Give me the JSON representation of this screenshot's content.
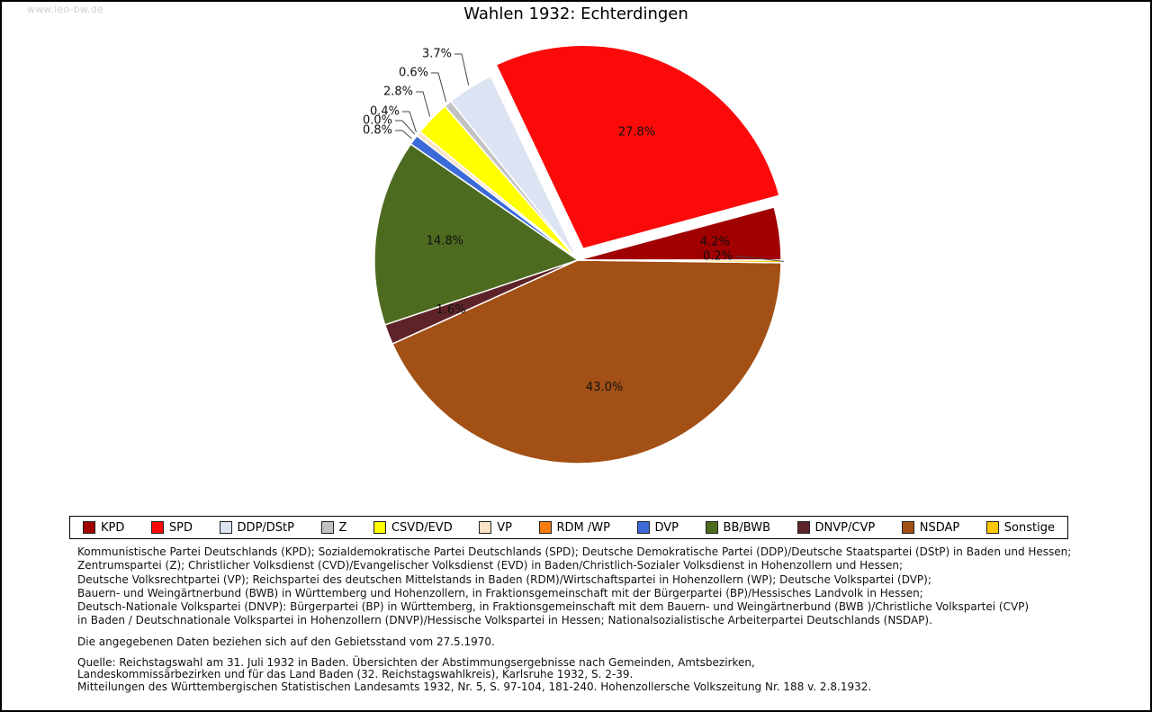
{
  "page": {
    "watermark": "www.leo-bw.de"
  },
  "chart_data": {
    "type": "pie",
    "title": "Wahlen 1932: Echterdingen",
    "values_unit": "percent",
    "start_angle_deg": 0,
    "direction": "counterclockwise",
    "legend_position": "bottom",
    "slices": [
      {
        "label": "KPD",
        "value": 4.2,
        "color": "#a00000",
        "exploded": false
      },
      {
        "label": "SPD",
        "value": 27.8,
        "color": "#fb0a0a",
        "exploded": true
      },
      {
        "label": "DDP/DStP",
        "value": 3.7,
        "color": "#dce3f2",
        "exploded": false
      },
      {
        "label": "Z",
        "value": 0.6,
        "color": "#c2c2c2",
        "exploded": false
      },
      {
        "label": "CSVD/EVD",
        "value": 2.8,
        "color": "#ffff00",
        "exploded": false
      },
      {
        "label": "VP",
        "value": 0.4,
        "color": "#fbe3c5",
        "exploded": false
      },
      {
        "label": "RDM /WP",
        "value": 0.0,
        "color": "#f87d0d",
        "exploded": false
      },
      {
        "label": "DVP",
        "value": 0.8,
        "color": "#3c6bd9",
        "exploded": false
      },
      {
        "label": "BB/BWB",
        "value": 14.8,
        "color": "#4d6b1f",
        "exploded": false
      },
      {
        "label": "DNVP/CVP",
        "value": 1.6,
        "color": "#5e2328",
        "exploded": false
      },
      {
        "label": "NSDAP",
        "value": 43.0,
        "color": "#a25015",
        "exploded": false
      },
      {
        "label": "Sonstige",
        "value": 0.2,
        "color": "#fdc700",
        "exploded": false
      }
    ]
  },
  "notes": {
    "party_lines": [
      "Kommunistische Partei Deutschlands (KPD); Sozialdemokratische Partei Deutschlands (SPD); Deutsche Demokratische Partei (DDP)/Deutsche Staatspartei (DStP) in Baden und Hessen;",
      "Zentrumspartei (Z); Christlicher Volksdienst (CVD)/Evangelischer Volksdienst (EVD) in Baden/Christlich-Sozialer Volksdienst in Hohenzollern und Hessen;",
      "Deutsche Volksrechtpartei (VP); Reichspartei des deutschen Mittelstands in Baden (RDM)/Wirtschaftspartei in Hohenzollern (WP); Deutsche Volkspartei (DVP);",
      "Bauern- und Weingärtnerbund (BWB) in Württemberg und Hohenzollern, in Fraktionsgemeinschaft mit der Bürgerpartei (BP)/Hessisches Landvolk in Hessen;",
      "Deutsch-Nationale Volkspartei (DNVP): Bürgerpartei (BP) in Württemberg, in Fraktionsgemeinschaft mit dem Bauern- und Weingärtnerbund (BWB )/Christliche Volkspartei (CVP)",
      "in Baden / Deutschnationale Volkspartei in Hohenzollern (DNVP)/Hessische Volkspartei in Hessen; Nationalsozialistische Arbeiterpartei Deutschlands (NSDAP)."
    ],
    "territory_note": "Die angegebenen Daten beziehen sich auf den Gebietsstand vom 27.5.1970.",
    "source_lines": [
      "Quelle: Reichstagswahl am 31. Juli 1932 in Baden. Übersichten der Abstimmungsergebnisse nach Gemeinden, Amtsbezirken,",
      "Landeskommissärbezirken und für das Land Baden (32. Reichstagswahlkreis), Karlsruhe 1932, S. 2-39.",
      "Mitteilungen des Württembergischen Statistischen Landesamts 1932, Nr. 5, S. 97-104, 181-240. Hohenzollersche Volkszeitung Nr. 188 v. 2.8.1932."
    ]
  }
}
